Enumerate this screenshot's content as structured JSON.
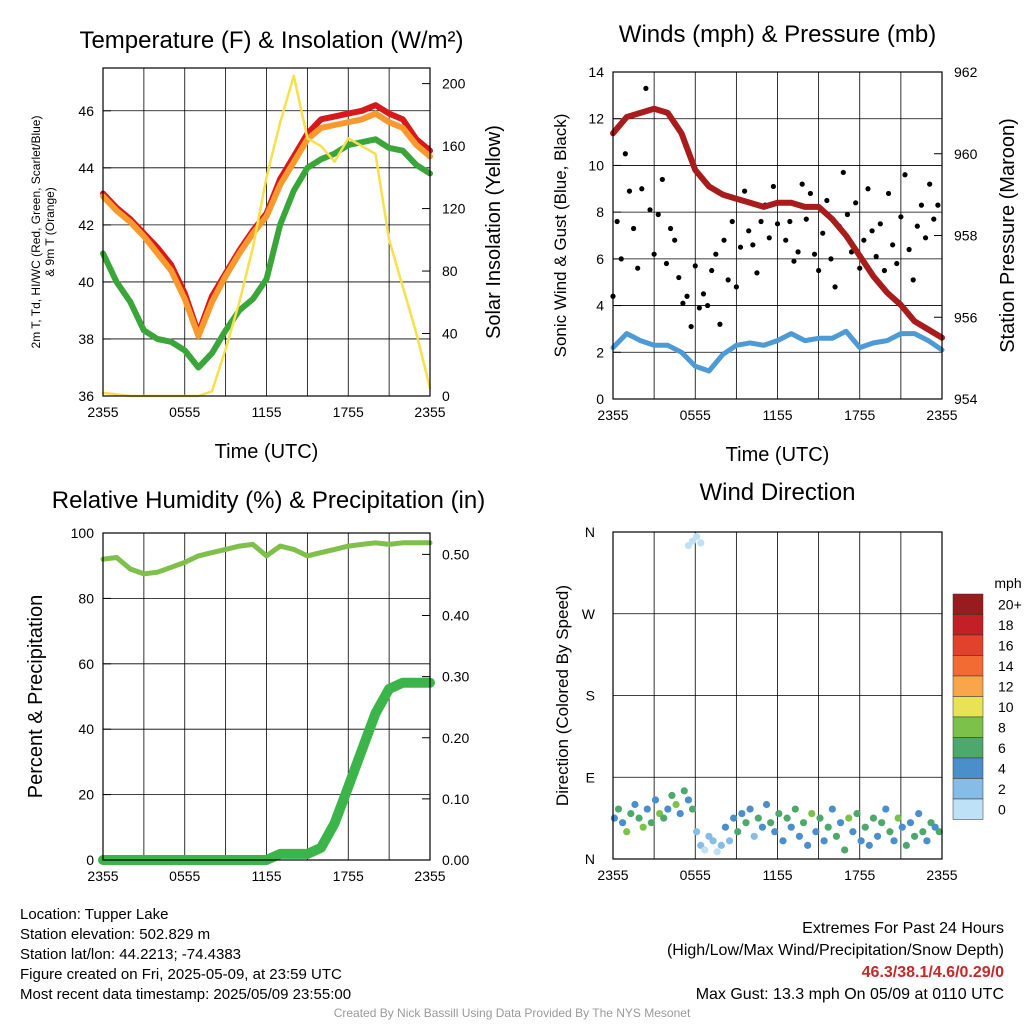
{
  "chart_data": [
    {
      "type": "line",
      "title": "Temperature (F) & Insolation (W/m²)",
      "xlabel": "Time (UTC)",
      "ylabel": "2m T, Td, HI/WC (Red, Green, Scarlet/Blue) & 9m T (Orange)",
      "ylabel_right": "Solar Insolation (Yellow)",
      "x_ticks": [
        "2355",
        "0555",
        "1155",
        "1755",
        "2355"
      ],
      "ylim": [
        36,
        47.5
      ],
      "y_ticks": [
        36,
        38,
        40,
        42,
        44,
        46
      ],
      "ylim_right": [
        0,
        210
      ],
      "y_ticks_right": [
        0,
        40,
        80,
        120,
        160,
        200
      ],
      "x": [
        0,
        1,
        2,
        3,
        4,
        5,
        6,
        7,
        8,
        9,
        10,
        11,
        12,
        13,
        14,
        15,
        16,
        17,
        18,
        19,
        20,
        21,
        22,
        23,
        24
      ],
      "series": [
        {
          "name": "2m T",
          "color": "#d7191c",
          "axis": "left",
          "values": [
            43.1,
            42.6,
            42.2,
            41.7,
            41.2,
            40.6,
            39.6,
            38.2,
            39.5,
            40.3,
            41.1,
            41.8,
            42.4,
            43.6,
            44.4,
            45.2,
            45.7,
            45.8,
            45.9,
            46.0,
            46.2,
            45.9,
            45.7,
            45.0,
            44.6
          ]
        },
        {
          "name": "9m T",
          "color": "#f79a2e",
          "axis": "left",
          "values": [
            43.0,
            42.5,
            42.1,
            41.6,
            41.0,
            40.4,
            39.4,
            38.1,
            39.3,
            40.2,
            41.0,
            41.7,
            42.3,
            43.4,
            44.2,
            45.0,
            45.4,
            45.5,
            45.6,
            45.7,
            45.9,
            45.6,
            45.4,
            44.8,
            44.4
          ]
        },
        {
          "name": "Td",
          "color": "#3aa63a",
          "axis": "left",
          "values": [
            41.0,
            40.0,
            39.3,
            38.3,
            38.0,
            37.9,
            37.6,
            37.0,
            37.5,
            38.3,
            39.0,
            39.4,
            40.1,
            42.0,
            43.2,
            44.0,
            44.3,
            44.5,
            44.8,
            44.9,
            45.0,
            44.7,
            44.6,
            44.1,
            43.8
          ]
        },
        {
          "name": "Solar",
          "color": "#f7e04b",
          "axis": "right",
          "values": [
            2,
            1,
            0,
            0,
            0,
            0,
            0,
            0,
            3,
            30,
            60,
            95,
            140,
            175,
            205,
            165,
            160,
            150,
            165,
            160,
            155,
            100,
            70,
            40,
            5
          ]
        }
      ]
    },
    {
      "type": "scatter",
      "title": "Winds (mph) & Pressure (mb)",
      "xlabel": "Time (UTC)",
      "ylabel": "Sonic Wind & Gust (Blue, Black)",
      "ylabel_right": "Station Pressure (Maroon)",
      "x_ticks": [
        "2355",
        "0555",
        "1155",
        "1755",
        "2355"
      ],
      "ylim": [
        0,
        14
      ],
      "y_ticks": [
        0,
        2,
        4,
        6,
        8,
        10,
        12,
        14
      ],
      "ylim_right": [
        954,
        962
      ],
      "y_ticks_right": [
        954,
        956,
        958,
        960,
        962
      ],
      "series": [
        {
          "name": "Pressure",
          "color": "#a81c1c",
          "axis": "right",
          "x": [
            0,
            1,
            2,
            3,
            4,
            5,
            6,
            7,
            8,
            9,
            10,
            11,
            12,
            13,
            14,
            15,
            16,
            17,
            18,
            19,
            20,
            21,
            22,
            23,
            24
          ],
          "values": [
            960.5,
            960.9,
            961.0,
            961.1,
            961.0,
            960.5,
            959.6,
            959.2,
            959.0,
            958.9,
            958.8,
            958.7,
            958.8,
            958.8,
            958.7,
            958.7,
            958.4,
            958.0,
            957.5,
            957.0,
            956.6,
            956.3,
            955.9,
            955.7,
            955.5
          ]
        },
        {
          "name": "Wind",
          "color": "#4e9ad4",
          "axis": "left",
          "x": [
            0,
            1,
            2,
            3,
            4,
            5,
            6,
            7,
            8,
            9,
            10,
            11,
            12,
            13,
            14,
            15,
            16,
            17,
            18,
            19,
            20,
            21,
            22,
            23,
            24
          ],
          "values": [
            2.2,
            2.8,
            2.5,
            2.3,
            2.3,
            2.0,
            1.4,
            1.2,
            1.9,
            2.3,
            2.4,
            2.3,
            2.5,
            2.8,
            2.5,
            2.6,
            2.6,
            2.9,
            2.2,
            2.4,
            2.5,
            2.8,
            2.8,
            2.5,
            2.1
          ]
        },
        {
          "name": "Gust",
          "color": "#000000",
          "axis": "left",
          "x": [
            0,
            0.3,
            0.6,
            0.9,
            1.2,
            1.5,
            1.8,
            2.1,
            2.4,
            2.7,
            3.0,
            3.3,
            3.6,
            3.9,
            4.2,
            4.5,
            4.8,
            5.1,
            5.4,
            5.7,
            6.0,
            6.3,
            6.6,
            6.9,
            7.2,
            7.5,
            7.8,
            8.1,
            8.4,
            8.7,
            9.0,
            9.3,
            9.6,
            9.9,
            10.2,
            10.5,
            10.8,
            11.1,
            11.4,
            11.7,
            12.0,
            12.3,
            12.6,
            12.9,
            13.2,
            13.5,
            13.8,
            14.1,
            14.4,
            14.7,
            15.0,
            15.3,
            15.6,
            15.9,
            16.2,
            16.5,
            16.8,
            17.1,
            17.4,
            17.7,
            18.0,
            18.3,
            18.6,
            18.9,
            19.2,
            19.5,
            19.8,
            20.1,
            20.4,
            20.7,
            21.0,
            21.3,
            21.6,
            21.9,
            22.2,
            22.5,
            22.8,
            23.1,
            23.4,
            23.7
          ],
          "values": [
            4.4,
            7.6,
            6.0,
            10.5,
            8.9,
            7.3,
            5.6,
            9.0,
            13.3,
            8.1,
            6.2,
            7.9,
            9.4,
            5.8,
            7.3,
            6.8,
            5.2,
            4.1,
            4.4,
            3.1,
            5.7,
            3.9,
            4.5,
            4.0,
            5.5,
            6.2,
            3.2,
            6.8,
            5.1,
            7.6,
            4.8,
            6.5,
            8.9,
            7.2,
            6.6,
            5.4,
            7.6,
            8.3,
            6.9,
            9.1,
            7.5,
            8.4,
            6.8,
            7.6,
            5.9,
            6.3,
            9.2,
            7.7,
            8.8,
            6.2,
            5.5,
            7.1,
            8.5,
            6.0,
            4.8,
            7.4,
            9.7,
            7.9,
            6.3,
            8.4,
            5.6,
            6.8,
            9.0,
            7.2,
            6.1,
            7.5,
            5.5,
            8.8,
            6.6,
            5.8,
            7.8,
            9.6,
            6.4,
            5.1,
            7.4,
            8.3,
            6.9,
            9.2,
            7.7,
            8.3
          ]
        }
      ]
    },
    {
      "type": "line",
      "title": "Relative Humidity (%) & Precipitation (in)",
      "ylabel": "Percent & Precipitation",
      "x_ticks": [
        "2355",
        "0555",
        "1155",
        "1755",
        "2355"
      ],
      "ylim": [
        0,
        100
      ],
      "y_ticks": [
        0,
        20,
        40,
        60,
        80,
        100
      ],
      "ylim_right": [
        0,
        0.535
      ],
      "y_ticks_right": [
        "0.00",
        "0.10",
        "0.20",
        "0.30",
        "0.40",
        "0.50"
      ],
      "x": [
        0,
        1,
        2,
        3,
        4,
        5,
        6,
        7,
        8,
        9,
        10,
        11,
        12,
        13,
        14,
        15,
        16,
        17,
        18,
        19,
        20,
        21,
        22,
        23,
        24
      ],
      "series": [
        {
          "name": "RH",
          "color": "#7ec04a",
          "axis": "left",
          "values": [
            92,
            92.5,
            89,
            87.5,
            88,
            89.5,
            91,
            93,
            94,
            95,
            96,
            96.5,
            93,
            96,
            95,
            93,
            94,
            95,
            96,
            96.5,
            97,
            96.5,
            97,
            97,
            97
          ]
        },
        {
          "name": "Precipitation",
          "color": "#3bb54a",
          "axis": "right",
          "values": [
            0,
            0,
            0,
            0,
            0,
            0,
            0,
            0,
            0,
            0,
            0,
            0,
            0,
            0.01,
            0.01,
            0.01,
            0.02,
            0.06,
            0.12,
            0.18,
            0.24,
            0.28,
            0.29,
            0.29,
            0.29
          ]
        }
      ]
    },
    {
      "type": "scatter",
      "title": "Wind Direction",
      "ylabel": "Direction (Colored By Speed)",
      "x_ticks": [
        "2355",
        "0555",
        "1155",
        "1755",
        "2355"
      ],
      "y_ticks": [
        "N",
        "E",
        "S",
        "W",
        "N"
      ],
      "ylim": [
        0,
        360
      ],
      "legend_title": "mph",
      "legend_labels": [
        "0",
        "2",
        "4",
        "6",
        "8",
        "10",
        "12",
        "14",
        "16",
        "18",
        "20+"
      ],
      "legend_colors": [
        "#bfe1f5",
        "#85bde6",
        "#4a8fcc",
        "#4ea86b",
        "#7cc24a",
        "#e8e356",
        "#f9a64a",
        "#f26b33",
        "#e2412b",
        "#c21f26",
        "#981b1e"
      ],
      "x": [
        0.1,
        0.4,
        0.7,
        1.0,
        1.3,
        1.6,
        1.9,
        2.2,
        2.5,
        2.8,
        3.1,
        3.4,
        3.7,
        4.0,
        4.3,
        4.6,
        4.9,
        5.2,
        5.5,
        5.8,
        6.1,
        6.4,
        6.7,
        7.0,
        7.3,
        7.6,
        7.9,
        8.2,
        8.5,
        8.8,
        9.1,
        9.4,
        9.7,
        10.0,
        10.3,
        10.6,
        10.9,
        11.2,
        11.5,
        11.8,
        12.1,
        12.4,
        12.7,
        13.0,
        13.3,
        13.6,
        13.9,
        14.2,
        14.5,
        14.8,
        15.1,
        15.4,
        15.7,
        16.0,
        16.3,
        16.6,
        16.9,
        17.2,
        17.5,
        17.8,
        18.1,
        18.4,
        18.7,
        19.0,
        19.3,
        19.6,
        19.9,
        20.2,
        20.5,
        20.8,
        21.1,
        21.4,
        21.7,
        22.0,
        22.3,
        22.6,
        22.9,
        23.2,
        23.5,
        23.8,
        5.5,
        5.8,
        6.1,
        6.4
      ],
      "values": [
        45,
        55,
        40,
        30,
        50,
        60,
        45,
        35,
        55,
        40,
        65,
        50,
        45,
        55,
        70,
        60,
        50,
        75,
        65,
        55,
        30,
        15,
        10,
        25,
        20,
        8,
        15,
        35,
        20,
        45,
        30,
        50,
        40,
        55,
        25,
        45,
        35,
        60,
        40,
        30,
        50,
        20,
        45,
        35,
        55,
        25,
        40,
        15,
        50,
        30,
        45,
        20,
        35,
        55,
        25,
        40,
        10,
        45,
        30,
        50,
        20,
        35,
        15,
        45,
        25,
        40,
        55,
        30,
        20,
        45,
        35,
        15,
        40,
        25,
        50,
        30,
        20,
        40,
        35,
        30,
        345,
        350,
        355,
        348
      ],
      "speed": [
        2,
        3,
        2,
        4,
        3,
        2,
        3,
        4,
        2,
        3,
        2,
        4,
        3,
        2,
        3,
        4,
        2,
        3,
        2,
        3,
        1,
        1,
        0,
        1,
        1,
        0,
        1,
        2,
        1,
        2,
        3,
        2,
        3,
        2,
        1,
        3,
        2,
        2,
        3,
        2,
        3,
        2,
        3,
        2,
        3,
        2,
        3,
        2,
        4,
        2,
        3,
        2,
        3,
        2,
        3,
        2,
        3,
        4,
        2,
        3,
        2,
        3,
        2,
        3,
        2,
        3,
        2,
        3,
        2,
        4,
        2,
        3,
        2,
        3,
        2,
        3,
        2,
        3,
        2,
        3,
        0,
        0,
        0,
        0
      ]
    }
  ],
  "info": {
    "location": "Location: Tupper Lake",
    "elevation": "Station elevation: 502.829 m",
    "latlon": "Station lat/lon: 44.2213; -74.4383",
    "created": "Figure created on Fri, 2025-05-09, at 23:59 UTC",
    "recent": "Most recent data timestamp: 2025/05/09 23:55:00",
    "extremes_title": "Extremes For Past 24 Hours",
    "extremes_sub": "(High/Low/Max Wind/Precipitation/Snow Depth)",
    "extremes_values": "46.3/38.1/4.6/0.29/0",
    "max_gust": "Max Gust: 13.3 mph On 05/09 at 0110 UTC",
    "credit": "Created By Nick Bassill Using Data Provided By The NYS Mesonet"
  }
}
